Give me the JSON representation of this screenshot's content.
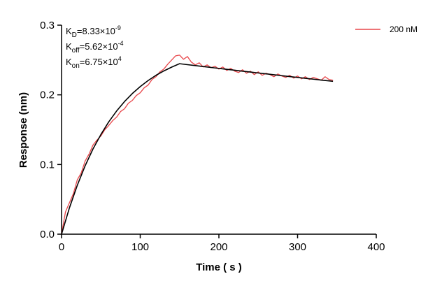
{
  "chart_data": {
    "type": "line",
    "xlabel": "Time ( s )",
    "ylabel": "Response (nm)",
    "xlim": [
      0,
      400
    ],
    "xticks": [
      0,
      100,
      200,
      300,
      400
    ],
    "ylim": [
      0,
      0.3
    ],
    "yticks": [
      {
        "value": 0,
        "label": "0.0"
      },
      0.1,
      0.2,
      0.3
    ],
    "grid": false,
    "legend": "upper right",
    "annotations": [
      {
        "symbol": "K",
        "sub": "D",
        "text": "=8.33×10",
        "sup": "-9"
      },
      {
        "symbol": "K",
        "sub": "off",
        "text": "=5.62×10",
        "sup": "-4"
      },
      {
        "symbol": "K",
        "sub": "on",
        "text": "=6.75×10",
        "sup": "4"
      }
    ],
    "series": [
      {
        "name": "200 nM",
        "color": "#e8464a",
        "x": [
          0,
          5,
          10,
          15,
          20,
          25,
          30,
          35,
          40,
          45,
          50,
          55,
          60,
          65,
          70,
          75,
          80,
          85,
          90,
          95,
          100,
          105,
          110,
          115,
          120,
          125,
          130,
          135,
          140,
          145,
          150,
          155,
          160,
          165,
          170,
          175,
          180,
          185,
          190,
          195,
          200,
          205,
          210,
          215,
          220,
          225,
          230,
          235,
          240,
          245,
          250,
          255,
          260,
          265,
          270,
          275,
          280,
          285,
          290,
          295,
          300,
          305,
          310,
          315,
          320,
          325,
          330,
          335,
          340,
          345
        ],
        "values": [
          0.0,
          0.032,
          0.045,
          0.058,
          0.078,
          0.088,
          0.105,
          0.115,
          0.128,
          0.135,
          0.141,
          0.15,
          0.156,
          0.163,
          0.168,
          0.176,
          0.18,
          0.188,
          0.192,
          0.199,
          0.203,
          0.21,
          0.214,
          0.222,
          0.226,
          0.233,
          0.237,
          0.244,
          0.25,
          0.256,
          0.257,
          0.251,
          0.255,
          0.247,
          0.243,
          0.246,
          0.24,
          0.243,
          0.239,
          0.241,
          0.237,
          0.24,
          0.235,
          0.238,
          0.234,
          0.232,
          0.236,
          0.231,
          0.234,
          0.229,
          0.233,
          0.228,
          0.231,
          0.229,
          0.226,
          0.23,
          0.227,
          0.225,
          0.228,
          0.224,
          0.227,
          0.223,
          0.226,
          0.222,
          0.225,
          0.223,
          0.221,
          0.226,
          0.222,
          0.221
        ]
      },
      {
        "color": "#000000",
        "x": [
          0,
          10,
          20,
          30,
          40,
          50,
          60,
          70,
          80,
          90,
          100,
          110,
          120,
          130,
          140,
          150,
          160,
          170,
          180,
          190,
          200,
          210,
          220,
          230,
          240,
          250,
          260,
          270,
          280,
          290,
          300,
          310,
          320,
          330,
          340,
          345
        ],
        "values": [
          0,
          0.0377,
          0.0701,
          0.0982,
          0.1224,
          0.143,
          0.1612,
          0.1768,
          0.1903,
          0.2019,
          0.2118,
          0.2205,
          0.228,
          0.2343,
          0.2398,
          0.2447,
          0.2433,
          0.242,
          0.2406,
          0.2393,
          0.2379,
          0.2366,
          0.2353,
          0.234,
          0.2327,
          0.2314,
          0.2301,
          0.2288,
          0.2275,
          0.2262,
          0.225,
          0.2237,
          0.2225,
          0.2212,
          0.22,
          0.2194
        ]
      }
    ]
  }
}
